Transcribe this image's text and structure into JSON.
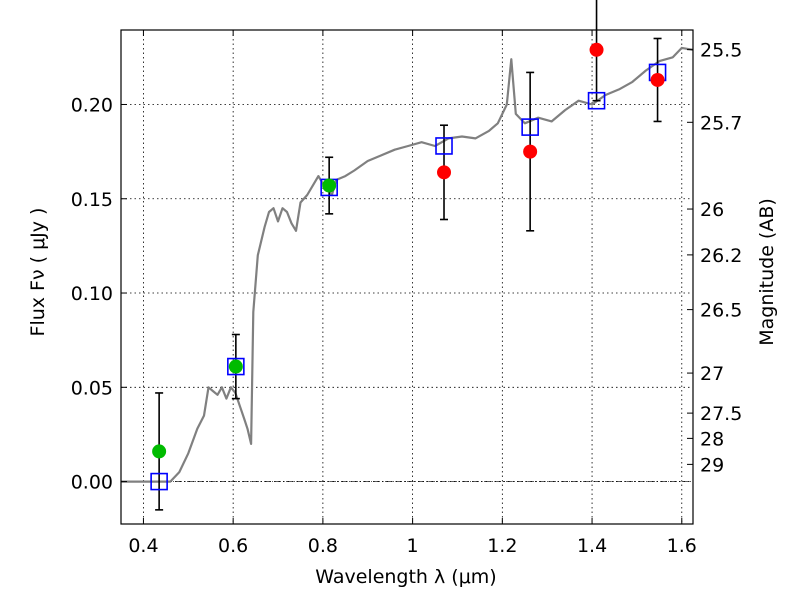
{
  "chart_data": {
    "type": "scatter",
    "xlabel": "Wavelength  λ (μm)",
    "ylabel": "Flux  Fν  ( μJy )",
    "y2label": "Magnitude (AB)",
    "xlim": [
      0.35,
      1.625
    ],
    "ylim": [
      -0.0225,
      0.2395
    ],
    "grid": true,
    "x_ticks": [
      0.4,
      0.6,
      0.8,
      1.0,
      1.2,
      1.4,
      1.6
    ],
    "x_tick_labels": [
      "0.4",
      "0.6",
      "0.8",
      "1",
      "1.2",
      "1.4",
      "1.6"
    ],
    "y_ticks": [
      0.0,
      0.05,
      0.1,
      0.15,
      0.2
    ],
    "y_tick_labels": [
      "0.00",
      "0.05",
      "0.10",
      "0.15",
      "0.20"
    ],
    "mag_ticks": [
      "25.5",
      "25.7",
      "26",
      "26.2",
      "26.5",
      "27",
      "27.5",
      "28",
      "29"
    ],
    "colors": {
      "model": "#808080",
      "model_points": "#0000ff",
      "observed_red": "#ff0000",
      "observed_green": "#00bb00",
      "errorbars": "#000000"
    },
    "model_spectrum": [
      [
        0.35,
        0.0
      ],
      [
        0.46,
        0.0
      ],
      [
        0.48,
        0.005
      ],
      [
        0.5,
        0.015
      ],
      [
        0.52,
        0.028
      ],
      [
        0.535,
        0.035
      ],
      [
        0.545,
        0.05
      ],
      [
        0.555,
        0.048
      ],
      [
        0.565,
        0.046
      ],
      [
        0.575,
        0.05
      ],
      [
        0.585,
        0.044
      ],
      [
        0.595,
        0.05
      ],
      [
        0.605,
        0.047
      ],
      [
        0.615,
        0.04
      ],
      [
        0.625,
        0.033
      ],
      [
        0.632,
        0.028
      ],
      [
        0.64,
        0.02
      ],
      [
        0.645,
        0.09
      ],
      [
        0.655,
        0.12
      ],
      [
        0.67,
        0.135
      ],
      [
        0.68,
        0.143
      ],
      [
        0.69,
        0.145
      ],
      [
        0.7,
        0.138
      ],
      [
        0.71,
        0.145
      ],
      [
        0.72,
        0.143
      ],
      [
        0.73,
        0.137
      ],
      [
        0.74,
        0.133
      ],
      [
        0.75,
        0.148
      ],
      [
        0.765,
        0.152
      ],
      [
        0.78,
        0.158
      ],
      [
        0.79,
        0.162
      ],
      [
        0.8,
        0.158
      ],
      [
        0.81,
        0.155
      ],
      [
        0.82,
        0.152
      ],
      [
        0.83,
        0.16
      ],
      [
        0.85,
        0.162
      ],
      [
        0.87,
        0.165
      ],
      [
        0.9,
        0.17
      ],
      [
        0.93,
        0.173
      ],
      [
        0.96,
        0.176
      ],
      [
        0.99,
        0.178
      ],
      [
        1.02,
        0.18
      ],
      [
        1.05,
        0.178
      ],
      [
        1.08,
        0.182
      ],
      [
        1.11,
        0.183
      ],
      [
        1.14,
        0.182
      ],
      [
        1.17,
        0.186
      ],
      [
        1.19,
        0.19
      ],
      [
        1.21,
        0.2
      ],
      [
        1.22,
        0.224
      ],
      [
        1.23,
        0.195
      ],
      [
        1.25,
        0.19
      ],
      [
        1.28,
        0.193
      ],
      [
        1.31,
        0.191
      ],
      [
        1.34,
        0.197
      ],
      [
        1.37,
        0.202
      ],
      [
        1.4,
        0.2
      ],
      [
        1.43,
        0.205
      ],
      [
        1.46,
        0.208
      ],
      [
        1.49,
        0.212
      ],
      [
        1.52,
        0.218
      ],
      [
        1.55,
        0.223
      ],
      [
        1.58,
        0.225
      ],
      [
        1.6,
        0.23
      ],
      [
        1.625,
        0.229
      ]
    ],
    "model_points": [
      {
        "x": 0.435,
        "y": 0.0
      },
      {
        "x": 0.606,
        "y": 0.061
      },
      {
        "x": 0.814,
        "y": 0.156
      },
      {
        "x": 1.07,
        "y": 0.178
      },
      {
        "x": 1.262,
        "y": 0.188
      },
      {
        "x": 1.41,
        "y": 0.202
      },
      {
        "x": 1.546,
        "y": 0.217
      }
    ],
    "observed": [
      {
        "x": 0.435,
        "y": 0.016,
        "err": 0.031,
        "color": "green"
      },
      {
        "x": 0.606,
        "y": 0.061,
        "err": 0.017,
        "color": "green"
      },
      {
        "x": 0.814,
        "y": 0.157,
        "err": 0.015,
        "color": "green"
      },
      {
        "x": 1.07,
        "y": 0.164,
        "err": 0.025,
        "color": "red"
      },
      {
        "x": 1.262,
        "y": 0.175,
        "err": 0.042,
        "color": "red"
      },
      {
        "x": 1.41,
        "y": 0.229,
        "err": 0.027,
        "color": "red"
      },
      {
        "x": 1.546,
        "y": 0.213,
        "err": 0.022,
        "color": "red"
      }
    ]
  }
}
